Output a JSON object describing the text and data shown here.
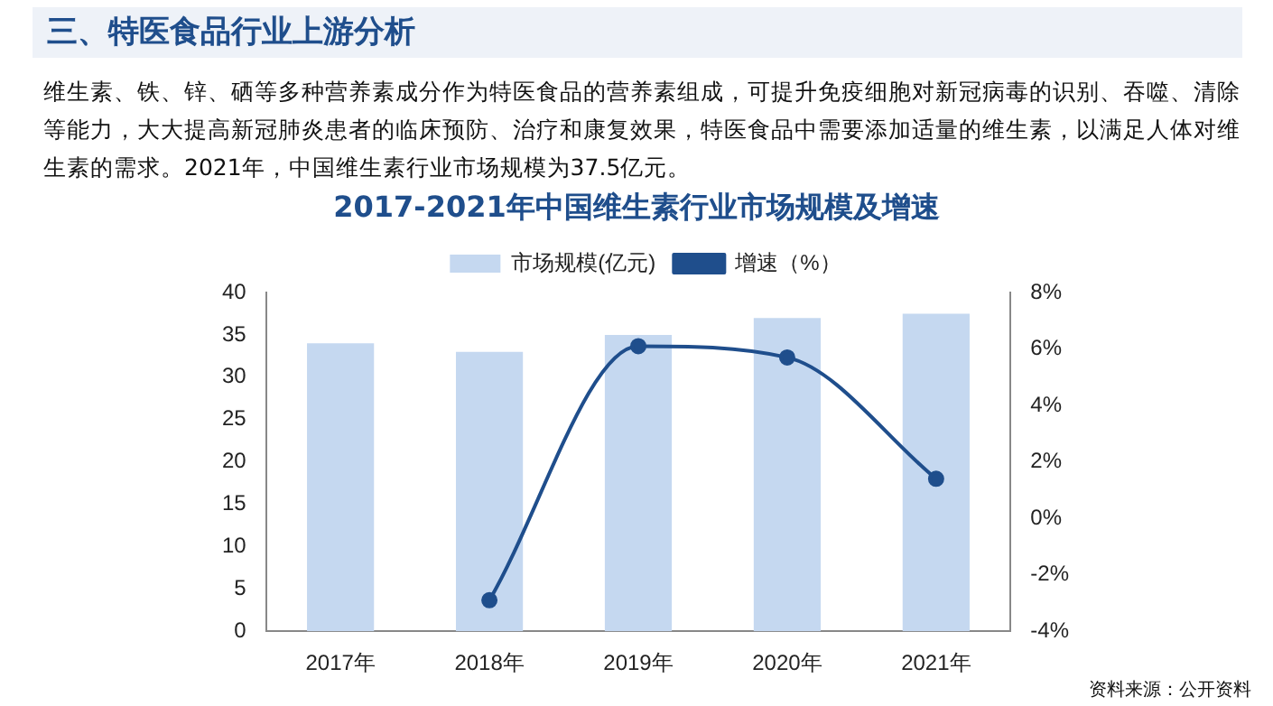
{
  "chart_data": {
    "type": "bar",
    "title": "2017-2021年中国维生素行业市场规模及增速",
    "annotations": [
      "三、特医食品行业上游分析",
      "维生素、铁、锌、硒等多种营养素成分作为特医食品的营养素组成，可提升免疫细胞对新冠病毒的识别、吞噬、清除等能力，大大提高新冠肺炎患者的临床预防、治疗和康复效果，特医食品中需要添加适量的维生素，以满足人体对维生素的需求。2021年，中国维生素行业市场规模为37.5亿元。",
      "资料来源：公开资料"
    ],
    "categories": [
      "2017年",
      "2018年",
      "2019年",
      "2020年",
      "2021年"
    ],
    "series": [
      {
        "name": "市场规模(亿元)",
        "color": "#c5d8f0",
        "values": [
          34,
          33,
          35,
          37,
          37.5
        ]
      },
      {
        "name": "增速（%）",
        "type": "line",
        "axis": "y2",
        "color": "#1f4e8c",
        "marker": "circle",
        "values": [
          null,
          -2.9,
          6.1,
          5.7,
          1.4
        ]
      }
    ],
    "ylim": [
      0,
      40
    ],
    "yticks": [
      0,
      5,
      10,
      15,
      20,
      25,
      30,
      35,
      40
    ],
    "y2lim": [
      -4,
      8
    ],
    "y2ticks": [
      {
        "value": -4,
        "label": "-4%"
      },
      {
        "value": -2,
        "label": "-2%"
      },
      {
        "value": 0,
        "label": "0%"
      },
      {
        "value": 2,
        "label": "2%"
      },
      {
        "value": 4,
        "label": "4%"
      },
      {
        "value": 6,
        "label": "6%"
      },
      {
        "value": 8,
        "label": "8%"
      }
    ],
    "grid": false,
    "legend": "top"
  }
}
